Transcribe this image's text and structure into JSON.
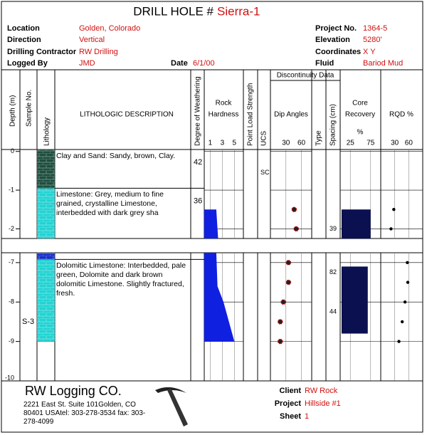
{
  "header": {
    "title": "DRILL HOLE #",
    "hole_id": "Sierra-1",
    "left_fields": [
      {
        "label": "Location",
        "value": "Golden, Colorado"
      },
      {
        "label": "Direction",
        "value": "Vertical"
      },
      {
        "label": "Drilling Contractor",
        "value": "RW Drilling"
      },
      {
        "label": "Logged By",
        "value": "JMD"
      }
    ],
    "date_label": "Date",
    "date": "6/1/00",
    "right_fields": [
      {
        "label": "Project No.",
        "value": "1364-5"
      },
      {
        "label": "Elevation",
        "value": "5280'"
      },
      {
        "label": "Coordinates",
        "value": "X Y"
      },
      {
        "label": "Fluid",
        "value": "Bariod Mud"
      }
    ]
  },
  "columns": {
    "depth": "Depth (m)",
    "sample": "Sample No.",
    "lithology": "Lithology",
    "description": "LITHOLOGIC DESCRIPTION",
    "weathering": "Degree of Weathering",
    "hardness": [
      "Rock",
      "Hardness"
    ],
    "point_load": "Point Load Strength",
    "ucs": "UCS",
    "discontinuity": "Discontinuity Data",
    "dip": "Dip Angles",
    "type": "Type",
    "spacing": "Spacing (cm)",
    "core": [
      "Core",
      "Recovery",
      "%"
    ],
    "rqd": "RQD %"
  },
  "scales": {
    "hardness": {
      "lim": [
        0,
        6.5
      ],
      "ticks": [
        1,
        3,
        5
      ]
    },
    "dip": {
      "lim": [
        0,
        80
      ],
      "ticks": [
        30,
        60
      ]
    },
    "core": {
      "lim": [
        0,
        100
      ],
      "ticks": [
        25,
        75
      ]
    },
    "rqd": {
      "lim": [
        0,
        90
      ],
      "ticks": [
        30,
        60
      ]
    }
  },
  "sections": [
    {
      "depth_lim": [
        0.05,
        -2.25
      ],
      "depth_ticks": [
        0,
        -1,
        -2
      ],
      "layers": [
        {
          "from": 0.05,
          "to": -0.95,
          "color": "#1d4e3e",
          "description": "Clay and Sand: Sandy, brown, Clay.",
          "weathering": 42
        },
        {
          "from": -0.95,
          "to": -2.25,
          "color": "#22d3d3",
          "description": "Limestone: Grey, medium to fine grained, crystalline Limestone, interbedded with dark grey sha",
          "weathering": 36
        }
      ],
      "ucs": [
        {
          "depth": -0.55,
          "label": "SC"
        }
      ],
      "hardness": {
        "depths": [
          -1.5,
          -2.25
        ],
        "values": [
          2,
          2.3
        ]
      },
      "dip": {
        "depths": [
          -1.5,
          -2.0
        ],
        "values": [
          46,
          50
        ]
      },
      "spacing": [
        {
          "depth": -2.0,
          "value": 39
        }
      ],
      "core": [
        {
          "from": -1.5,
          "to": -2.25,
          "value": 75
        }
      ],
      "rqd": {
        "depths": [
          -1.5,
          -2.0
        ],
        "values": [
          28,
          22
        ]
      }
    },
    {
      "depth_lim": [
        -6.75,
        -10
      ],
      "depth_ticks": [
        -7,
        -8,
        -9,
        -10
      ],
      "layers": [
        {
          "from": -6.75,
          "to": -6.92,
          "color": "#1530c8"
        },
        {
          "from": -6.92,
          "to": -9.0,
          "color": "#22d3d3",
          "description": "Dolomitic Limestone: Interbedded, pale green, Dolomite and dark brown dolomitic Limestone. Slightly fractured, fresh."
        }
      ],
      "samples": [
        {
          "depth": -8.5,
          "label": "S-3"
        }
      ],
      "hardness": {
        "depths": [
          -6.75,
          -7.6,
          -8.0,
          -9.0
        ],
        "values": [
          2.0,
          2.2,
          3.2,
          5.0
        ]
      },
      "dip": {
        "depths": [
          -7.0,
          -7.5,
          -8.0,
          -8.5,
          -9.0
        ],
        "values": [
          35,
          35,
          25,
          19,
          19
        ]
      },
      "spacing": [
        {
          "depth": -7.25,
          "value": 82
        },
        {
          "depth": -8.25,
          "value": 44
        }
      ],
      "core": [
        {
          "from": -7.1,
          "to": -8.8,
          "value": 68
        }
      ],
      "rqd": {
        "depths": [
          -7.0,
          -7.5,
          -8.0,
          -8.5,
          -9.0
        ],
        "values": [
          57,
          58,
          52,
          46,
          39
        ]
      }
    }
  ],
  "footer": {
    "company": "RW Logging CO.",
    "address": "2221 East St. Suite 101Golden, CO 80401 USAtel: 303-278-3534 fax: 303-278-4099",
    "fields": [
      {
        "label": "Client",
        "value": "RW Rock"
      },
      {
        "label": "Project",
        "value": "Hillside #1"
      },
      {
        "label": "Sheet",
        "value": "1"
      }
    ]
  }
}
